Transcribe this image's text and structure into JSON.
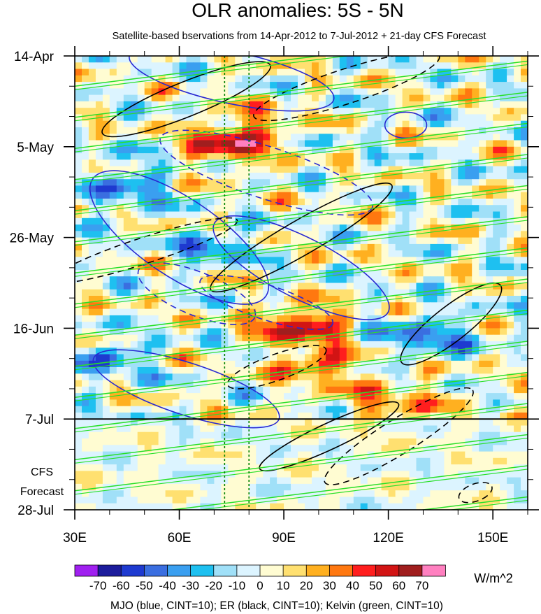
{
  "chart_data": {
    "type": "heatmap",
    "title": "OLR anomalies: 5S - 5N",
    "subtitle": "Satellite-based bservations from 14-Apr-2012 to 7-Jul-2012 + 21-day CFS Forecast",
    "x_ticks": [
      {
        "value": 30,
        "label": "30E"
      },
      {
        "value": 60,
        "label": "60E"
      },
      {
        "value": 90,
        "label": "90E"
      },
      {
        "value": 120,
        "label": "120E"
      },
      {
        "value": 150,
        "label": "150E"
      }
    ],
    "xlim": [
      30,
      160
    ],
    "y_ticks": [
      {
        "value": 0,
        "label": "14-Apr"
      },
      {
        "value": 21,
        "label": "5-May"
      },
      {
        "value": 42,
        "label": "26-May"
      },
      {
        "value": 63,
        "label": "16-Jun"
      },
      {
        "value": 84,
        "label": "7-Jul"
      },
      {
        "value": 105,
        "label": "28-Jul"
      }
    ],
    "ylim_days": [
      0,
      105
    ],
    "forecast_start_day": 84,
    "forecast_label_line1": "CFS",
    "forecast_label_line2": "Forecast",
    "reference_lines_lon": [
      73,
      80
    ],
    "colorbar": {
      "levels": [
        -70,
        -60,
        -50,
        -40,
        -30,
        -20,
        -10,
        0,
        10,
        20,
        30,
        40,
        50,
        60,
        70
      ],
      "labels": [
        "-70",
        "-60",
        "-50",
        "-40",
        "-30",
        "-20",
        "-10",
        "0",
        "10",
        "20",
        "30",
        "40",
        "50",
        "60",
        "70"
      ],
      "colors": [
        "#a020f0",
        "#1c1c9c",
        "#1e3ad0",
        "#3a6ee0",
        "#3a9ff0",
        "#1ec0f0",
        "#a0e0f8",
        "#dcf4ff",
        "#fffcd2",
        "#ffe070",
        "#ffb020",
        "#ff7810",
        "#ff1e1e",
        "#d21414",
        "#a01e1e",
        "#ff80c0"
      ],
      "units": "W/m^2"
    },
    "legend_text": "MJO (blue, CINT=10); ER (black, CINT=10); Kelvin (green, CINT=10)",
    "series_colors": {
      "mjo": "#2828d2",
      "er": "#000000",
      "kelvin": "#28e028",
      "reference": "#008000"
    }
  }
}
